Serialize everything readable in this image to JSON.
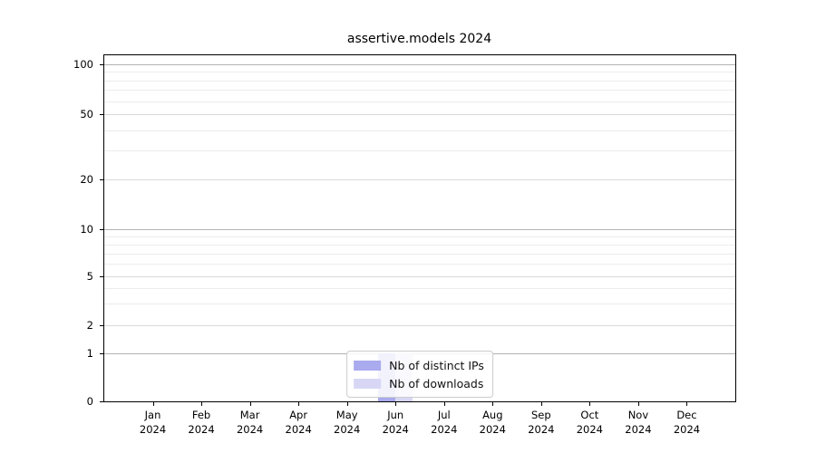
{
  "chart_data": {
    "type": "bar",
    "title": "assertive.models 2024",
    "categories": [
      "Jan 2024",
      "Feb 2024",
      "Mar 2024",
      "Apr 2024",
      "May 2024",
      "Jun 2024",
      "Jul 2024",
      "Aug 2024",
      "Sep 2024",
      "Oct 2024",
      "Nov 2024",
      "Dec 2024"
    ],
    "series": [
      {
        "name": "Nb of distinct IPs",
        "color": "#aaaaee",
        "values": [
          0,
          0,
          0,
          0,
          0,
          1,
          0,
          0,
          0,
          0,
          0,
          0
        ]
      },
      {
        "name": "Nb of downloads",
        "color": "#d7d7f5",
        "values": [
          0,
          0,
          0,
          0,
          0,
          1,
          0,
          0,
          0,
          0,
          0,
          0
        ]
      }
    ],
    "xlabel": "",
    "ylabel": "",
    "y_ticks": [
      0,
      1,
      2,
      5,
      10,
      20,
      50,
      100
    ],
    "y_minor_ticks": [
      3,
      4,
      6,
      7,
      8,
      9,
      30,
      40,
      60,
      70,
      80,
      90
    ],
    "ylim": [
      0,
      113
    ],
    "y_scale": "log(1+x)",
    "grid": "horizontal",
    "legend_position": "lower center"
  },
  "colors": {
    "background": "#ffffff",
    "spine": "#000000",
    "grid_major": "#b3b3b3",
    "grid_labeled": "#d9d9d9",
    "grid_minor": "#ececec",
    "text": "#000000",
    "legend_border": "#cccccc",
    "legend_background": "rgba(255,255,255,0.85)"
  }
}
